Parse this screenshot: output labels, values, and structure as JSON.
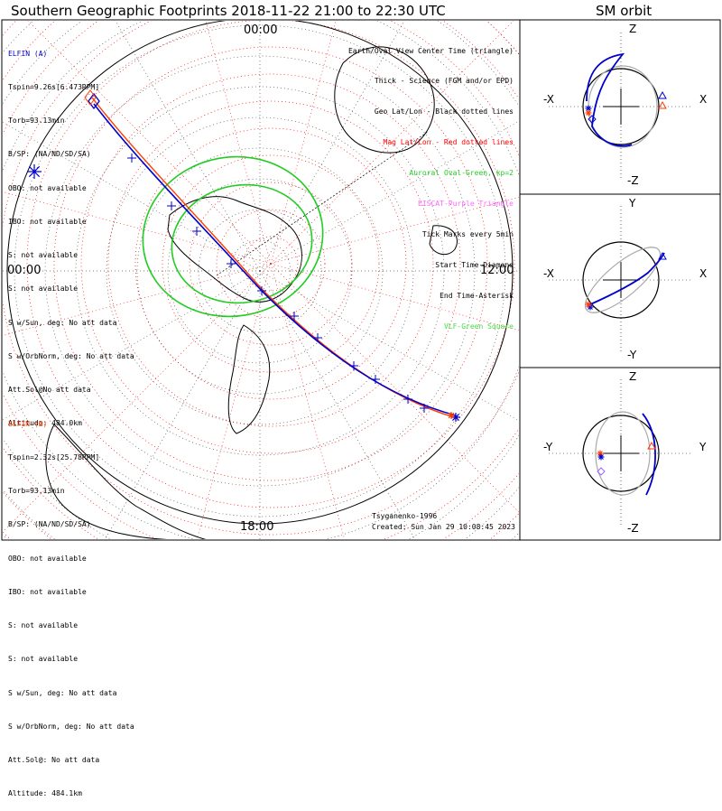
{
  "title": "Southern Geographic Footprints 2018-11-22 21:00 to 22:30 UTC",
  "orbit_title": "SM orbit",
  "colors": {
    "elfin_a": "#0000cc",
    "elfin_b": "#ff3b00",
    "geo_grid": "#000000",
    "mag_grid": "#ff0000",
    "auroral_oval": "#22cc22",
    "eiscat": "#ff66ff",
    "vlf": "#44dd44"
  },
  "map": {
    "time_top": "00:00",
    "time_left": "00:00",
    "time_right": "12:00",
    "time_bottom": "18:00"
  },
  "elfin_a": {
    "name": "ELFIN (A)",
    "lines": [
      "Tspin=9.26s[6.473RPM]",
      "Torb=93.13min",
      "B/SP: (NA/ND/SD/SA)",
      "OBO: not available",
      "IBO: not available",
      "S: not available",
      "S: not available",
      "S w/Sun, deg: No att data",
      "S w/OrbNorm, deg: No att data",
      "Att.Sol@No att data",
      "Altitude: 484.0km"
    ]
  },
  "elfin_b": {
    "name": "ELFIN (B)",
    "lines": [
      "Tspin=2.32s[25.78RPM]",
      "Torb=93.13min",
      "B/SP: (NA/ND/SD/SA)",
      "OBO: not available",
      "IBO: not available",
      "S: not available",
      "S: not available",
      "S w/Sun, deg: No att data",
      "S w/OrbNorm, deg: No att data",
      "Att.Sol@: No att data",
      "Altitude: 484.1km"
    ]
  },
  "legend": [
    {
      "text": "Earth/Oval View Center Time (triangle)",
      "color": "#000000"
    },
    {
      "text": "Thick - Science (FGM and/or EPD)",
      "color": "#000000"
    },
    {
      "text": "Geo Lat/Lon - Black dotted lines",
      "color": "#000000"
    },
    {
      "text": "Mag Lat/Lon - Red dotted lines",
      "color": "#ff0000"
    },
    {
      "text": "Auroral Oval-Green, kp=2",
      "color": "#22cc22"
    },
    {
      "text": "EISCAT-Purple Triangle",
      "color": "#ff66ff"
    },
    {
      "text": "Tick Marks every 5min",
      "color": "#000000"
    },
    {
      "text": "Start Time-Diamond",
      "color": "#000000"
    },
    {
      "text": "End Time-Asterisk",
      "color": "#000000"
    },
    {
      "text": "VLF-Green Square",
      "color": "#44dd44"
    }
  ],
  "credits": {
    "model": "Tsyganenko-1996",
    "created": "Created: Sun Jan 29 10:08:45 2023"
  },
  "panels": [
    {
      "top": "Z",
      "bottom": "-Z",
      "left": "-X",
      "right": "X"
    },
    {
      "top": "Y",
      "bottom": "-Y",
      "left": "-X",
      "right": "X"
    },
    {
      "top": "Z",
      "bottom": "-Z",
      "left": "-Y",
      "right": "Y"
    }
  ]
}
